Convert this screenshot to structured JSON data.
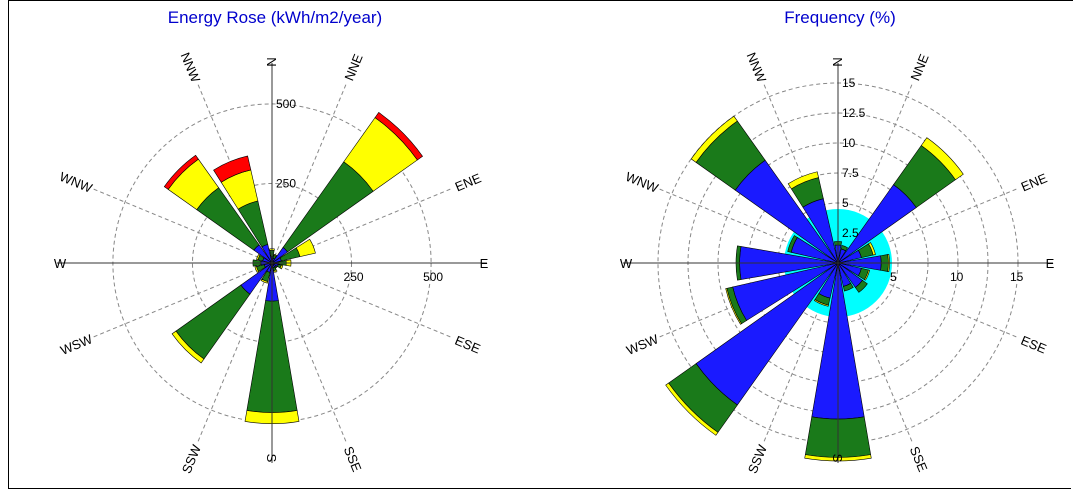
{
  "chart_data": [
    {
      "type": "rose",
      "title": "Energy Rose (kWh/m2/year)",
      "directions": [
        "N",
        "NNE",
        "NE",
        "ENE",
        "E",
        "ESE",
        "SE",
        "SSE",
        "S",
        "SSW",
        "SW",
        "WSW",
        "W",
        "WNW",
        "NW",
        "NNW"
      ],
      "direction_labels_shown": [
        "N",
        "NNE",
        "ENE",
        "E",
        "ESE",
        "SSE",
        "S",
        "SSW",
        "WSW",
        "W",
        "WNW",
        "NNW"
      ],
      "radial_ticks": [
        250,
        500
      ],
      "radial_tick_labels": [
        "250",
        "500"
      ],
      "rmax": 660,
      "band_colors": [
        "#1a1aff",
        "#1a7a1a",
        "#ffff00",
        "#ff0000"
      ],
      "sectors": [
        {
          "dir": "N",
          "cum": [
            20,
            40,
            45,
            45
          ]
        },
        {
          "dir": "NNE",
          "cum": [
            15,
            25,
            28,
            28
          ]
        },
        {
          "dir": "NE",
          "cum": [
            60,
            390,
            560,
            580
          ]
        },
        {
          "dir": "ENE",
          "cum": [
            30,
            90,
            140,
            140
          ]
        },
        {
          "dir": "E",
          "cum": [
            20,
            45,
            60,
            60
          ]
        },
        {
          "dir": "ESE",
          "cum": [
            20,
            30,
            35,
            35
          ]
        },
        {
          "dir": "SE",
          "cum": [
            15,
            20,
            20,
            20
          ]
        },
        {
          "dir": "SSE",
          "cum": [
            15,
            25,
            30,
            30
          ]
        },
        {
          "dir": "S",
          "cum": [
            120,
            470,
            505,
            505
          ]
        },
        {
          "dir": "SSW",
          "cum": [
            30,
            60,
            65,
            65
          ]
        },
        {
          "dir": "SW",
          "cum": [
            120,
            370,
            385,
            385
          ]
        },
        {
          "dir": "WSW",
          "cum": [
            25,
            50,
            55,
            55
          ]
        },
        {
          "dir": "W",
          "cum": [
            35,
            60,
            60,
            60
          ]
        },
        {
          "dir": "WNW",
          "cum": [
            30,
            45,
            50,
            50
          ]
        },
        {
          "dir": "NW",
          "cum": [
            70,
            290,
            400,
            415
          ]
        },
        {
          "dir": "NNW",
          "cum": [
            60,
            200,
            300,
            345
          ]
        }
      ]
    },
    {
      "type": "rose",
      "title": "Frequency (%)",
      "directions": [
        "N",
        "NNE",
        "NE",
        "ENE",
        "E",
        "ESE",
        "SE",
        "SSE",
        "S",
        "SSW",
        "SW",
        "WSW",
        "W",
        "WNW",
        "NW",
        "NNW"
      ],
      "direction_labels_shown": [
        "N",
        "NNE",
        "ENE",
        "E",
        "ESE",
        "SSE",
        "S",
        "SSW",
        "WSW",
        "W",
        "WNW",
        "NNW"
      ],
      "radial_ticks": [
        2.5,
        5,
        7.5,
        10,
        12.5,
        15
      ],
      "radial_tick_labels": [
        "2.5",
        "5",
        "7.5",
        "10",
        "12.5",
        "15"
      ],
      "horizontal_tick_labels": [
        "5",
        "10",
        "15"
      ],
      "rmax": 17.5,
      "calm_color": "#00ffff",
      "calm_radius": 4.5,
      "band_colors": [
        "#1a1aff",
        "#1a7a1a",
        "#ffff00",
        "#ff0000"
      ],
      "sectors": [
        {
          "dir": "N",
          "cum": [
            1.5,
            1.8,
            1.8,
            1.8
          ]
        },
        {
          "dir": "NNE",
          "cum": [
            1.2,
            1.5,
            1.5,
            1.5
          ]
        },
        {
          "dir": "NE",
          "cum": [
            8.0,
            12.0,
            12.8,
            12.8
          ]
        },
        {
          "dir": "ENE",
          "cum": [
            2.0,
            3.0,
            3.2,
            3.2
          ]
        },
        {
          "dir": "E",
          "cum": [
            3.6,
            4.2,
            4.3,
            4.3
          ]
        },
        {
          "dir": "ESE",
          "cum": [
            2.0,
            2.6,
            2.7,
            2.7
          ]
        },
        {
          "dir": "SE",
          "cum": [
            2.5,
            3.0,
            3.0,
            3.0
          ]
        },
        {
          "dir": "SSE",
          "cum": [
            2.0,
            2.4,
            2.4,
            2.4
          ]
        },
        {
          "dir": "S",
          "cum": [
            13.0,
            16.2,
            16.5,
            16.5
          ]
        },
        {
          "dir": "SSW",
          "cum": [
            3.0,
            3.6,
            3.7,
            3.7
          ]
        },
        {
          "dir": "SW",
          "cum": [
            14.5,
            17.3,
            17.6,
            17.6
          ]
        },
        {
          "dir": "WSW",
          "cum": [
            9.0,
            9.5,
            9.6,
            9.6
          ]
        },
        {
          "dir": "W",
          "cum": [
            8.2,
            8.5,
            8.5,
            8.5
          ]
        },
        {
          "dir": "WNW",
          "cum": [
            4.0,
            4.3,
            4.3,
            4.3
          ]
        },
        {
          "dir": "NW",
          "cum": [
            10.5,
            14.5,
            15.0,
            15.0
          ]
        },
        {
          "dir": "NNW",
          "cum": [
            5.5,
            7.3,
            7.8,
            7.8
          ]
        }
      ]
    }
  ],
  "title_color": "#0000cc"
}
